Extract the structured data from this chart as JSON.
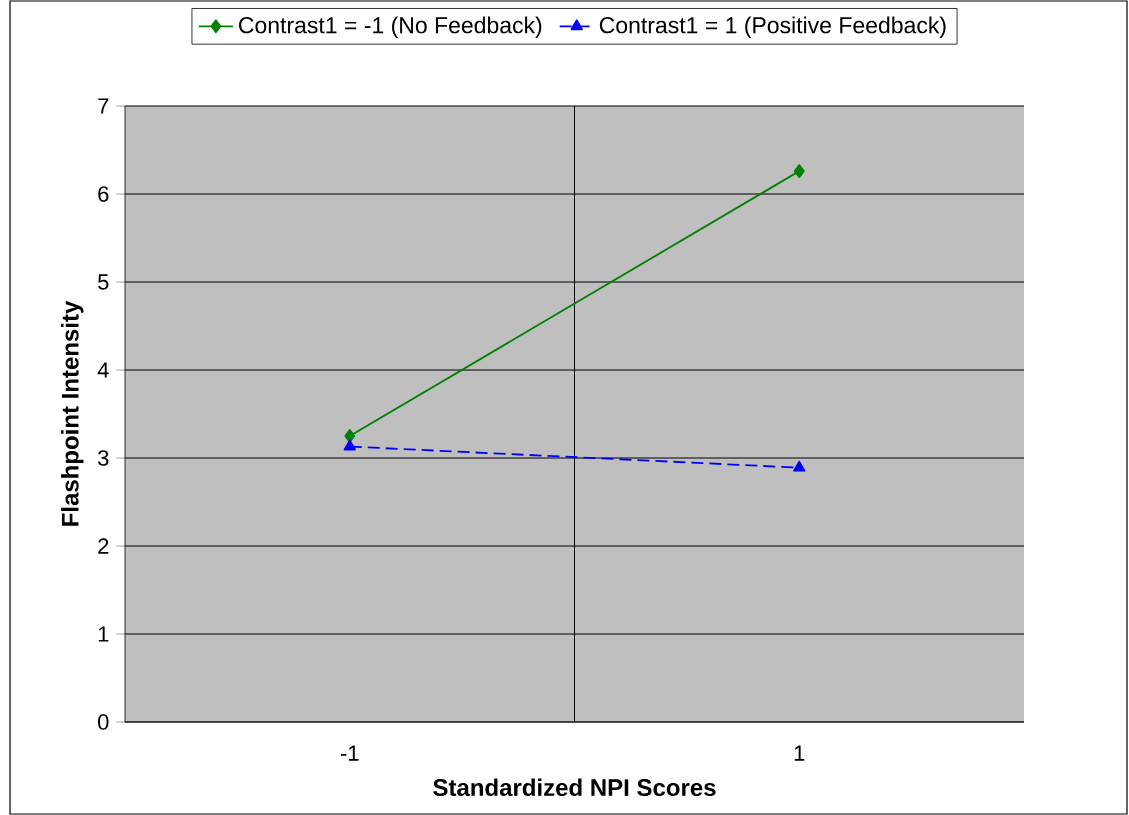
{
  "chart_data": {
    "type": "line",
    "xlabel": "Standardized NPI Scores",
    "ylabel": "Flashpoint Intensity",
    "categories": [
      "-1",
      "1"
    ],
    "series": [
      {
        "name": "Contrast1 = -1 (No Feedback)",
        "color": "#008000",
        "values": [
          3.25,
          6.26
        ],
        "marker": "diamond",
        "line_style": "solid"
      },
      {
        "name": "Contrast1 = 1 (Positive Feedback)",
        "color": "#0000ff",
        "values": [
          3.13,
          2.89
        ],
        "marker": "triangle",
        "line_style": "dashed"
      }
    ],
    "ylim": [
      0,
      7
    ],
    "yticks": [
      0,
      1,
      2,
      3,
      4,
      5,
      6,
      7
    ],
    "grid": true,
    "legend": "top"
  }
}
